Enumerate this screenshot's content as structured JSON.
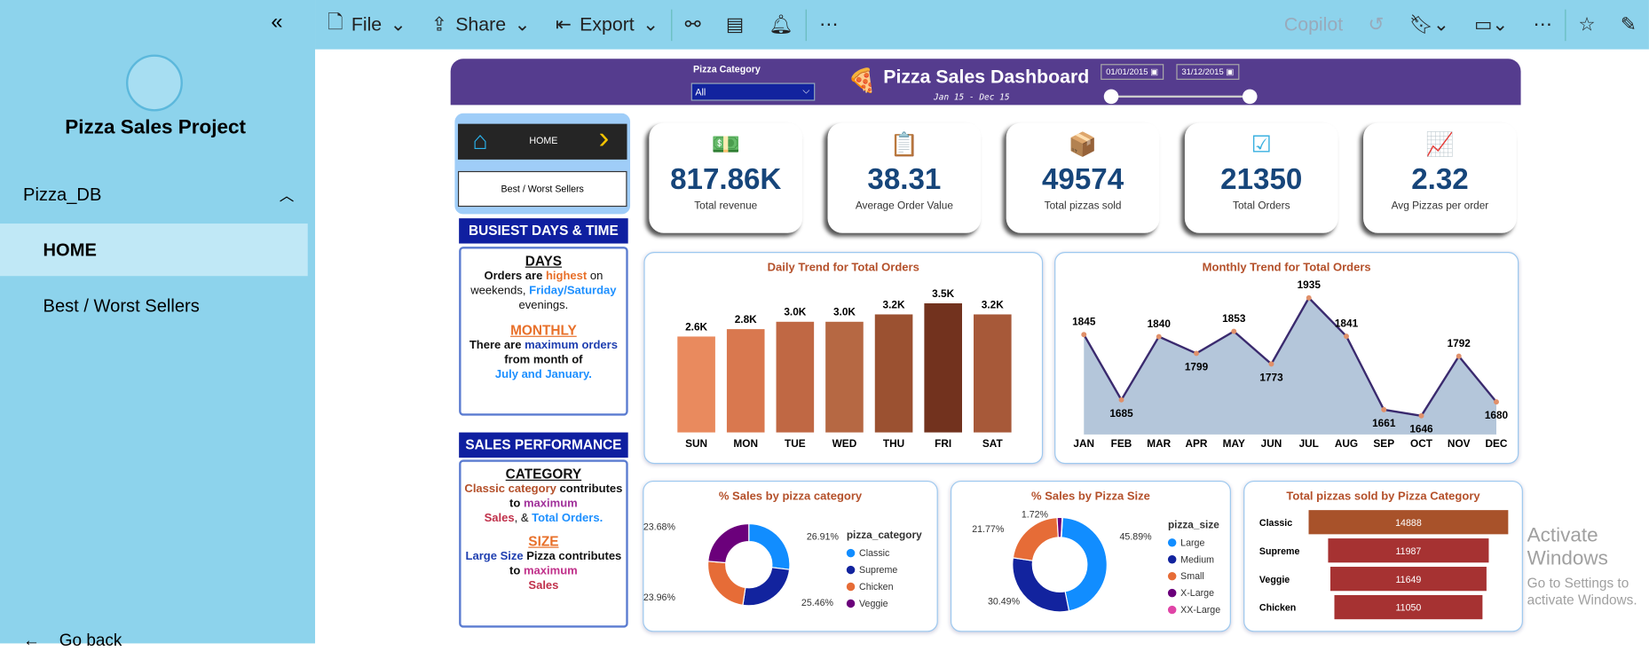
{
  "sidebar": {
    "title": "Pizza Sales Project",
    "group": "Pizza_DB",
    "items": [
      {
        "label": "HOME",
        "active": true
      },
      {
        "label": "Best / Worst Sellers",
        "active": false
      }
    ],
    "go_back": "Go back"
  },
  "toolbar": {
    "file": "File",
    "share": "Share",
    "export": "Export",
    "copilot": "Copilot"
  },
  "header": {
    "title": "Pizza Sales Dashboard",
    "subtitle": "Jan 15 - Dec 15",
    "filter_label": "Pizza Category",
    "filter_value": "All",
    "date_start": "01/01/2015",
    "date_end": "31/12/2015"
  },
  "nav": {
    "home": "HOME",
    "best": "Best / Worst Sellers"
  },
  "insights": {
    "busiest": "BUSIEST DAYS & TIME",
    "days_h": "DAYS",
    "days_1": "Orders are ",
    "days_hl": "highest",
    "days_2": " on weekends, ",
    "days_hl2": "Friday/Saturday",
    "days_3": " evenings.",
    "monthly_h": "MONTHLY",
    "monthly_1": "There are ",
    "monthly_hl": "maximum orders",
    "monthly_2": " from month of",
    "monthly_hl2": "July and January.",
    "sales": "SALES PERFORMANCE",
    "cat_h": "CATEGORY",
    "cat_1": "Classic category",
    "cat_2": " contributes to ",
    "cat_hl": "maximum",
    "cat_3": "Sales",
    "cat_4": ", & ",
    "cat_5": "Total Orders.",
    "size_h": "SIZE",
    "size_1": "Large Size",
    "size_2": " Pizza contributes to ",
    "size_hl": "maximum",
    "size_3": "Sales"
  },
  "kpis": [
    {
      "value": "817.86K",
      "label": "Total revenue",
      "icon": "money-icon"
    },
    {
      "value": "38.31",
      "label": "Average Order Value",
      "icon": "clipboard-icon"
    },
    {
      "value": "49574",
      "label": "Total pizzas sold",
      "icon": "delivery-icon"
    },
    {
      "value": "21350",
      "label": "Total Orders",
      "icon": "checklist-icon"
    },
    {
      "value": "2.32",
      "label": "Avg Pizzas per order",
      "icon": "growth-chart-icon"
    }
  ],
  "chart_data": [
    {
      "type": "bar",
      "title": "Daily Trend for Total Orders",
      "categories": [
        "SUN",
        "MON",
        "TUE",
        "WED",
        "THU",
        "FRI",
        "SAT"
      ],
      "values": [
        2.6,
        2.8,
        3.0,
        3.0,
        3.2,
        3.5,
        3.2
      ],
      "labels": [
        "2.6K",
        "2.8K",
        "3.0K",
        "3.0K",
        "3.2K",
        "3.5K",
        "3.2K"
      ],
      "unit": "K",
      "colors": [
        "#e98a5e",
        "#d9784f",
        "#c06844",
        "#b66843",
        "#9b5131",
        "#72321e",
        "#a75939"
      ]
    },
    {
      "type": "area",
      "title": "Monthly Trend for Total Orders",
      "categories": [
        "JAN",
        "FEB",
        "MAR",
        "APR",
        "MAY",
        "JUN",
        "JUL",
        "AUG",
        "SEP",
        "OCT",
        "NOV",
        "DEC"
      ],
      "values": [
        1845,
        1685,
        1840,
        1799,
        1853,
        1773,
        1935,
        1841,
        1661,
        1646,
        1792,
        1680
      ],
      "ylim": [
        1600,
        1950
      ]
    },
    {
      "type": "pie",
      "title": "% Sales by pizza category",
      "legend_title": "pizza_category",
      "slices": [
        {
          "name": "Classic",
          "value": 26.91,
          "label": "26.91%",
          "color": "#118dff"
        },
        {
          "name": "Supreme",
          "value": 25.46,
          "label": "25.46%",
          "color": "#12239e"
        },
        {
          "name": "Chicken",
          "value": 23.96,
          "label": "23.96%",
          "color": "#e66c37"
        },
        {
          "name": "Veggie",
          "value": 23.68,
          "label": "23.68%",
          "color": "#6b007b"
        }
      ]
    },
    {
      "type": "pie",
      "title": "% Sales by Pizza Size",
      "legend_title": "pizza_size",
      "slices": [
        {
          "name": "Large",
          "value": 45.89,
          "label": "45.89%",
          "color": "#118dff"
        },
        {
          "name": "Medium",
          "value": 30.49,
          "label": "30.49%",
          "color": "#12239e"
        },
        {
          "name": "Small",
          "value": 21.77,
          "label": "21.77%",
          "color": "#e66c37"
        },
        {
          "name": "X-Large",
          "value": 1.72,
          "label": "1.72%",
          "color": "#6b007b"
        },
        {
          "name": "XX-Large",
          "value": 0.13,
          "label": "",
          "color": "#e044a7"
        }
      ]
    },
    {
      "type": "bar",
      "title": "Total pizzas sold by Pizza Category",
      "categories": [
        "Classic",
        "Supreme",
        "Veggie",
        "Chicken"
      ],
      "values": [
        14888,
        11987,
        11649,
        11050
      ]
    }
  ],
  "watermark": {
    "line1": "Activate Windows",
    "line2": "Go to Settings to activate Windows."
  }
}
